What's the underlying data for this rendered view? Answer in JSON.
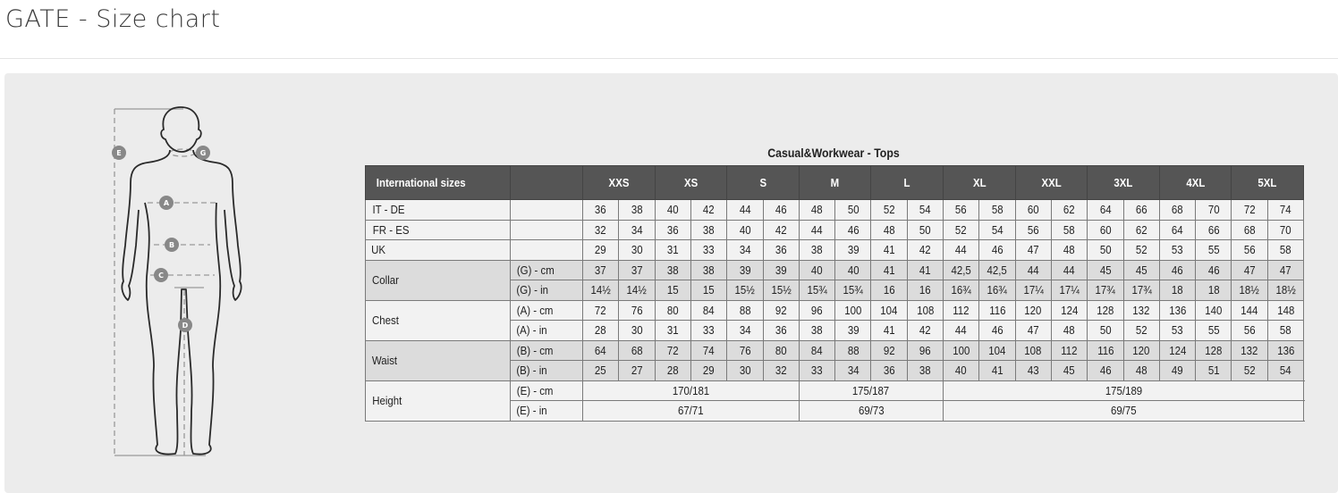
{
  "page": {
    "title": "GATE - Size chart"
  },
  "figure": {
    "labels": [
      "E",
      "G",
      "A",
      "B",
      "C",
      "D"
    ]
  },
  "table": {
    "title": "Casual&Workwear - Tops",
    "header_label": "International sizes",
    "sizes": [
      "XXS",
      "XS",
      "S",
      "M",
      "L",
      "XL",
      "XXL",
      "3XL",
      "4XL",
      "5XL"
    ],
    "rows": [
      {
        "label": "IT - DE",
        "unit": "",
        "shade": "light",
        "values": [
          "36",
          "38",
          "40",
          "42",
          "44",
          "46",
          "48",
          "50",
          "52",
          "54",
          "56",
          "58",
          "60",
          "62",
          "64",
          "66",
          "68",
          "70",
          "72",
          "74"
        ]
      },
      {
        "label": "FR - ES",
        "unit": "",
        "shade": "light",
        "values": [
          "32",
          "34",
          "36",
          "38",
          "40",
          "42",
          "44",
          "46",
          "48",
          "50",
          "52",
          "54",
          "56",
          "58",
          "60",
          "62",
          "64",
          "66",
          "68",
          "70"
        ]
      },
      {
        "label": "UK",
        "unit": "",
        "shade": "light",
        "values": [
          "29",
          "30",
          "31",
          "33",
          "34",
          "36",
          "38",
          "39",
          "41",
          "42",
          "44",
          "46",
          "47",
          "48",
          "50",
          "52",
          "53",
          "55",
          "56",
          "58"
        ]
      },
      {
        "label": "Collar",
        "unit": "(G) - cm",
        "shade": "dark",
        "values": [
          "37",
          "37",
          "38",
          "38",
          "39",
          "39",
          "40",
          "40",
          "41",
          "41",
          "42,5",
          "42,5",
          "44",
          "44",
          "45",
          "45",
          "46",
          "46",
          "47",
          "47"
        ]
      },
      {
        "label": "",
        "unit": "(G)  - in",
        "shade": "dark",
        "values": [
          "14½",
          "14½",
          "15",
          "15",
          "15½",
          "15½",
          "15¾",
          "15¾",
          "16",
          "16",
          "16¾",
          "16¾",
          "17¼",
          "17¼",
          "17¾",
          "17¾",
          "18",
          "18",
          "18½",
          "18½"
        ]
      },
      {
        "label": "Chest",
        "unit": "(A) - cm",
        "shade": "light",
        "values": [
          "72",
          "76",
          "80",
          "84",
          "88",
          "92",
          "96",
          "100",
          "104",
          "108",
          "112",
          "116",
          "120",
          "124",
          "128",
          "132",
          "136",
          "140",
          "144",
          "148"
        ]
      },
      {
        "label": "",
        "unit": "(A) - in",
        "shade": "light",
        "values": [
          "28",
          "30",
          "31",
          "33",
          "34",
          "36",
          "38",
          "39",
          "41",
          "42",
          "44",
          "46",
          "47",
          "48",
          "50",
          "52",
          "53",
          "55",
          "56",
          "58"
        ]
      },
      {
        "label": "Waist",
        "unit": "(B) - cm",
        "shade": "dark",
        "values": [
          "64",
          "68",
          "72",
          "74",
          "76",
          "80",
          "84",
          "88",
          "92",
          "96",
          "100",
          "104",
          "108",
          "112",
          "116",
          "120",
          "124",
          "128",
          "132",
          "136"
        ]
      },
      {
        "label": "",
        "unit": "(B) - in",
        "shade": "dark",
        "values": [
          "25",
          "27",
          "28",
          "29",
          "30",
          "32",
          "33",
          "34",
          "36",
          "38",
          "40",
          "41",
          "43",
          "45",
          "46",
          "48",
          "49",
          "51",
          "52",
          "54"
        ]
      }
    ],
    "height_rows": [
      {
        "label": "Height",
        "unit": "(E) - cm",
        "spans": [
          {
            "sizes": "XXS-S",
            "value": "170/181"
          },
          {
            "sizes": "M-L",
            "value": "175/187"
          },
          {
            "sizes": "XL-5XL",
            "value": "175/189"
          }
        ]
      },
      {
        "label": "",
        "unit": "(E) - in",
        "spans": [
          {
            "sizes": "XXS-S",
            "value": "67/71"
          },
          {
            "sizes": "M-L",
            "value": "69/73"
          },
          {
            "sizes": "XL-5XL",
            "value": "69/75"
          }
        ]
      }
    ]
  },
  "colors": {
    "header_bg": "#555555",
    "dark_row": "#dcdcdc",
    "light_row": "#f2f2f2",
    "panel": "#ececec"
  }
}
